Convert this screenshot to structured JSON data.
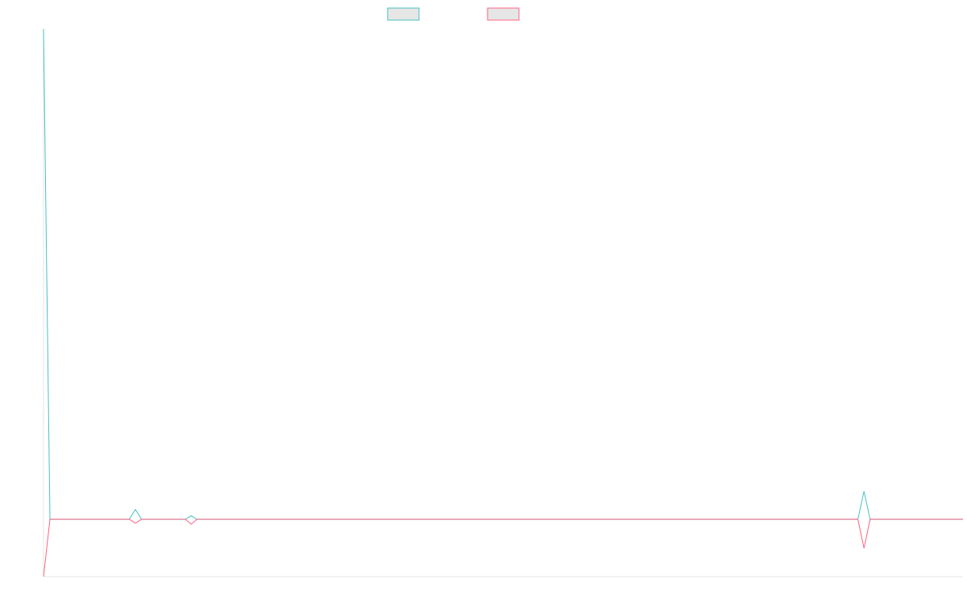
{
  "chart_data": {
    "type": "line",
    "x": [
      0,
      1,
      13.3,
      14.25,
      15.2,
      22,
      22.9,
      23.8,
      126.3,
      127.25,
      128.2,
      142.6
    ],
    "series": [
      {
        "color": "#4bc0c0",
        "values": [
          100,
          0,
          0,
          2,
          0,
          0,
          0.7,
          0,
          0,
          5.7,
          0,
          0
        ]
      },
      {
        "color": "#ff6384",
        "values": [
          -11.7,
          0,
          0,
          -0.8,
          0,
          0,
          -1,
          0,
          0,
          -5.9,
          0,
          0
        ]
      }
    ],
    "xlim": [
      0,
      142.6
    ],
    "ylim": [
      -11.7,
      100
    ],
    "legend": "top"
  }
}
